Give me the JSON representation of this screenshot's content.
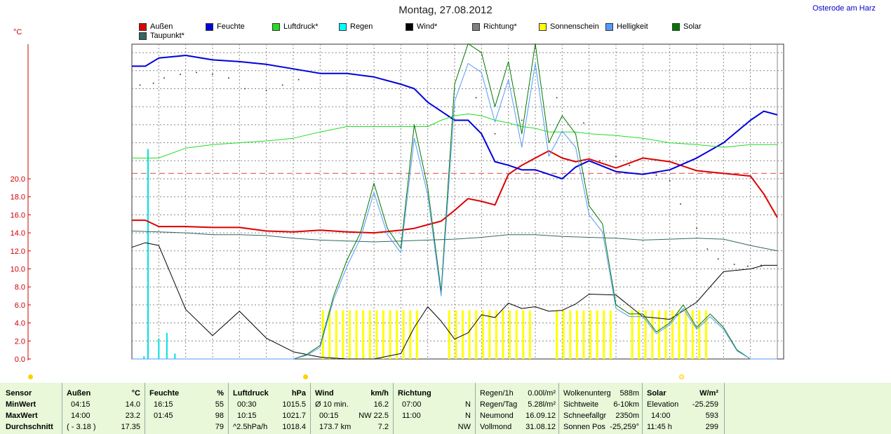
{
  "header": {
    "title": "Montag, 27.08.2012",
    "location": "Osterode am Harz",
    "y_unit": "°C"
  },
  "legend": [
    {
      "label": "Außen",
      "color": "#dd0000"
    },
    {
      "label": "Feuchte",
      "color": "#0000dd"
    },
    {
      "label": "Luftdruck*",
      "color": "#22dd22"
    },
    {
      "label": "Regen",
      "color": "#00ffff"
    },
    {
      "label": "Wind*",
      "color": "#000000"
    },
    {
      "label": "Richtung*",
      "color": "#808080"
    },
    {
      "label": "Sonnenschein",
      "color": "#ffff00"
    },
    {
      "label": "Helligkeit",
      "color": "#5599ff"
    },
    {
      "label": "Solar",
      "color": "#007700"
    },
    {
      "label": "Taupunkt*",
      "color": "#336666"
    }
  ],
  "chart_data": {
    "type": "line",
    "title": "Montag, 27.08.2012",
    "ylabel": "°C",
    "ylim": [
      0,
      35
    ],
    "x_hours": [
      0,
      24
    ],
    "y_ticks": [
      "0.0",
      "2.0",
      "4.0",
      "6.0",
      "8.0",
      "10.0",
      "12.0",
      "14.0",
      "16.0",
      "18.0",
      "20.0"
    ],
    "reference_line": 20.6,
    "series": [
      {
        "name": "Außen",
        "color": "#dd0000",
        "width": 2,
        "x": [
          0,
          0.5,
          1,
          2,
          3,
          4,
          5,
          6,
          7,
          8,
          9,
          10,
          10.5,
          11,
          11.5,
          12,
          12.5,
          13,
          13.5,
          14,
          14.5,
          15,
          15.5,
          16,
          16.5,
          17,
          18,
          19,
          20,
          21,
          22,
          23,
          23.5,
          24
        ],
        "y": [
          15.4,
          15.4,
          14.7,
          14.7,
          14.6,
          14.6,
          14.2,
          14.1,
          14.3,
          14.1,
          14.0,
          14.3,
          14.5,
          14.9,
          15.3,
          16.5,
          17.8,
          17.5,
          17.1,
          20.5,
          21.5,
          22.3,
          23.1,
          22.3,
          21.9,
          22.2,
          21.2,
          22.3,
          21.9,
          20.9,
          20.6,
          20.3,
          18.3,
          15.7
        ]
      },
      {
        "name": "Feuchte",
        "color": "#0000dd",
        "width": 2,
        "x": [
          0,
          0.5,
          1,
          2,
          3,
          4,
          5,
          6,
          7,
          8,
          9,
          10,
          10.5,
          11,
          11.5,
          12,
          12.5,
          13,
          13.5,
          14,
          14.5,
          15,
          15.5,
          16,
          16.5,
          17,
          18,
          19,
          20,
          21,
          22,
          23,
          23.5,
          24
        ],
        "y": [
          32.5,
          32.5,
          33.4,
          33.7,
          33.2,
          33.0,
          32.7,
          32.2,
          31.7,
          31.7,
          31.3,
          30.5,
          30.0,
          28.5,
          27.5,
          26.5,
          26.5,
          25.0,
          21.9,
          21.5,
          21.0,
          21.0,
          20.5,
          20.0,
          21.3,
          22.0,
          20.8,
          20.5,
          21.0,
          22.3,
          24.0,
          26.5,
          27.5,
          27.1
        ]
      },
      {
        "name": "Luftdruck*",
        "color": "#22dd22",
        "width": 1,
        "x": [
          0,
          0.5,
          1,
          2,
          3,
          4,
          5,
          6,
          7,
          8,
          9,
          10,
          10.5,
          11,
          11.5,
          12,
          12.5,
          13,
          13.5,
          14,
          14.5,
          15,
          15.5,
          16,
          16.5,
          17,
          18,
          19,
          20,
          21,
          22,
          23,
          23.5,
          24
        ],
        "y": [
          22.3,
          22.3,
          22.3,
          23.4,
          23.8,
          24.0,
          24.2,
          24.5,
          25.2,
          25.8,
          25.8,
          25.8,
          25.8,
          25.8,
          26.5,
          27.0,
          27.2,
          27.0,
          26.5,
          26.2,
          25.8,
          25.6,
          25.2,
          25.2,
          25.2,
          25.0,
          24.8,
          24.5,
          24.0,
          23.8,
          23.5,
          23.8,
          23.8,
          23.8
        ]
      },
      {
        "name": "Wind*",
        "color": "#000000",
        "width": 1,
        "x": [
          0,
          0.5,
          1,
          2,
          3,
          4,
          5,
          6,
          7,
          8,
          9,
          10,
          10.5,
          11,
          11.5,
          12,
          12.5,
          13,
          13.5,
          14,
          14.5,
          15,
          15.5,
          16,
          16.5,
          17,
          18,
          19,
          20,
          21,
          22,
          23,
          23.5,
          24
        ],
        "y": [
          12.4,
          12.9,
          12.6,
          5.5,
          2.6,
          5.3,
          2.3,
          0.8,
          0.2,
          0.0,
          0.0,
          0.6,
          3.5,
          5.8,
          4.2,
          2.2,
          2.9,
          4.9,
          4.6,
          6.2,
          5.6,
          5.8,
          5.3,
          5.4,
          6.1,
          7.2,
          7.1,
          4.7,
          4.4,
          6.3,
          9.7,
          10.0,
          10.4,
          10.4
        ]
      },
      {
        "name": "Taupunkt*",
        "color": "#336666",
        "width": 1,
        "x": [
          0,
          1,
          2,
          3,
          4,
          5,
          6,
          7,
          8,
          9,
          10,
          11,
          12,
          13,
          14,
          15,
          16,
          17,
          18,
          19,
          20,
          21,
          22,
          23,
          24
        ],
        "y": [
          14.2,
          14.1,
          14.0,
          13.8,
          13.8,
          13.7,
          13.4,
          13.2,
          13.1,
          13.0,
          13.1,
          13.2,
          13.3,
          13.5,
          13.8,
          13.8,
          13.6,
          13.5,
          13.4,
          13.2,
          13.3,
          13.4,
          13.3,
          12.6,
          12.0
        ]
      },
      {
        "name": "Solar",
        "color": "#007700",
        "width": 1,
        "x": [
          0,
          6,
          6.5,
          7,
          7.5,
          8,
          8.5,
          9,
          9.5,
          10,
          10.5,
          11,
          11.5,
          12,
          12.5,
          13,
          13.5,
          14,
          14.5,
          15,
          15.5,
          16,
          16.5,
          17,
          17.5,
          18,
          18.5,
          19,
          19.5,
          20,
          20.5,
          21,
          21.5,
          22,
          22.5,
          23,
          23.5,
          24
        ],
        "y": [
          0,
          0,
          0.5,
          1.5,
          7,
          11,
          14,
          19.5,
          14.5,
          12.3,
          26,
          19,
          7.5,
          30.5,
          35,
          34,
          28,
          33,
          25,
          35,
          24,
          27,
          25,
          17,
          15,
          6,
          5,
          5,
          3,
          4,
          6,
          3.5,
          5,
          3.5,
          1,
          0,
          0,
          0
        ]
      },
      {
        "name": "Helligkeit",
        "color": "#5599ff",
        "width": 1,
        "x": [
          0,
          6,
          6.5,
          7,
          7.5,
          8,
          8.5,
          9,
          9.5,
          10,
          10.5,
          11,
          11.5,
          12,
          12.5,
          13,
          13.5,
          14,
          14.5,
          15,
          15.5,
          16,
          16.5,
          17,
          17.5,
          18,
          18.5,
          19,
          19.5,
          20,
          20.5,
          21,
          21.5,
          22,
          22.5,
          23,
          23.5,
          24
        ],
        "y": [
          0,
          0,
          0.4,
          1.3,
          6.6,
          10.3,
          13.4,
          18.5,
          13.8,
          11.8,
          24.5,
          18.2,
          7.0,
          28.6,
          32.8,
          31.8,
          26.3,
          31.0,
          23.5,
          32.8,
          22.5,
          25.3,
          23.5,
          16.0,
          14.1,
          5.6,
          4.7,
          4.7,
          2.8,
          3.8,
          5.6,
          3.3,
          4.7,
          3.3,
          0.9,
          0,
          0,
          0
        ]
      }
    ],
    "sunshine_bars": [
      [
        7.1,
        10.7
      ],
      [
        11.8,
        14.9
      ],
      [
        15.8,
        17.9
      ],
      [
        18.6,
        21.4
      ]
    ],
    "rain_bars": [
      {
        "x": 0.6,
        "h": 23.3
      },
      {
        "x": 1.0,
        "h": 2.3
      },
      {
        "x": 1.3,
        "h": 2.9
      },
      {
        "x": 1.6,
        "h": 0.6
      },
      {
        "x": 0.45,
        "h": 0.3
      }
    ],
    "direction_dots": [
      [
        0.3,
        30.4
      ],
      [
        0.8,
        30.6
      ],
      [
        1.2,
        31.2
      ],
      [
        1.8,
        31.6
      ],
      [
        2.4,
        31.8
      ],
      [
        3.0,
        31.6
      ],
      [
        3.6,
        31.2
      ],
      [
        4.2,
        30.0
      ],
      [
        5.0,
        29.8
      ],
      [
        5.6,
        30.4
      ],
      [
        6.2,
        31.0
      ],
      [
        12.8,
        29.0
      ],
      [
        13.5,
        25.0
      ],
      [
        14.5,
        26.5
      ],
      [
        15.8,
        29.0
      ],
      [
        16.8,
        26.2
      ],
      [
        17.4,
        22.0
      ],
      [
        18.0,
        22.5
      ],
      [
        18.5,
        21.5
      ],
      [
        19.5,
        20.4
      ],
      [
        20.0,
        19.8
      ],
      [
        20.4,
        17.2
      ],
      [
        21.0,
        14.5
      ],
      [
        21.4,
        12.2
      ],
      [
        21.8,
        11.1
      ],
      [
        22.4,
        10.5
      ],
      [
        22.9,
        10.3
      ],
      [
        23.4,
        10.4
      ]
    ]
  },
  "summary": {
    "col_sensor": {
      "h": "Sensor",
      "r1": "MinWert",
      "r2": "MaxWert",
      "r3": "Durchschnitt"
    },
    "col_aussen": {
      "h": "Außen",
      "u": "°C",
      "r1a": "04:15",
      "r1b": "14.0",
      "r2a": "14:00",
      "r2b": "23.2",
      "r3a": "( - 3.18 )",
      "r3b": "17.35"
    },
    "col_feuchte": {
      "h": "Feuchte",
      "u": "%",
      "r1a": "16:15",
      "r1b": "55",
      "r2a": "01:45",
      "r2b": "98",
      "r3b": "79"
    },
    "col_luft": {
      "h": "Luftdruck",
      "u": "hPa",
      "r1a": "00:30",
      "r1b": "1015.5",
      "r2a": "10:15",
      "r2b": "1021.7",
      "r3a": "^2.5hPa/h",
      "r3b": "1018.4"
    },
    "col_wind": {
      "h": "Wind",
      "u": "km/h",
      "r1a": "Ø 10 min.",
      "r1b": "16.2",
      "r2a": "00:15",
      "r2b": "NW 22.5",
      "r3a": "173.7 km",
      "r3b": "7.2"
    },
    "col_richtung": {
      "h": "Richtung",
      "r1a": "07:00",
      "r1b": "N",
      "r2a": "11:00",
      "r2b": "N",
      "r3b": "NW"
    },
    "col_regen": {
      "r0a": "Regen/1h",
      "r0b": "0.00l/m²",
      "r1a": "Regen/Tag",
      "r1b": "5.28l/m²",
      "r2a": "Neumond",
      "r2b": "16.09.12",
      "r3a": "Vollmond",
      "r3b": "31.08.12"
    },
    "col_wolken": {
      "r0a": "Wolkenunterg",
      "r0b": "588m",
      "r1a": "Sichtweite",
      "r1b": "6-10km",
      "r2a": "Schneefallgr",
      "r2b": "2350m",
      "r3a": "Sonnen Pos",
      "r3b": "-25,259°"
    },
    "col_solar": {
      "h": "Solar",
      "u": "W/m²",
      "r1a": "Elevation",
      "r1b": "-25.259",
      "r2a": "14:00",
      "r2b": "593",
      "r3a": "11:45 h",
      "r3b": "299"
    }
  }
}
